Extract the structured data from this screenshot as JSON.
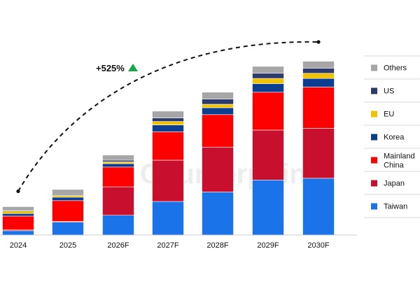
{
  "chart_data": {
    "type": "bar",
    "stacked": true,
    "title": "",
    "xlabel": "",
    "ylabel": "",
    "categories": [
      "2024",
      "2025",
      "2026F",
      "2027F",
      "2028F",
      "2029F",
      "2030F"
    ],
    "ylim": [
      0,
      100
    ],
    "grid": false,
    "legend_position": "right",
    "series": [
      {
        "name": "Taiwan",
        "color": "#1a73e8",
        "values": [
          2.5,
          7.5,
          11.5,
          19.5,
          25,
          32,
          33
        ]
      },
      {
        "name": "Japan",
        "color": "#c8102e",
        "values": [
          0.5,
          0.5,
          16.5,
          24,
          26,
          29,
          29
        ]
      },
      {
        "name": "Mainland China",
        "color": "#ff0000",
        "values": [
          8,
          12,
          11.5,
          16.5,
          19,
          22,
          24
        ]
      },
      {
        "name": "Korea",
        "color": "#0b3d91",
        "values": [
          1.5,
          2,
          2,
          4,
          4,
          5,
          5
        ]
      },
      {
        "name": "EU",
        "color": "#f2c200",
        "values": [
          1.5,
          1,
          1,
          2,
          2,
          3,
          3
        ]
      },
      {
        "name": "US",
        "color": "#2e3a6b",
        "values": [
          0.5,
          0.5,
          1,
          2,
          3,
          3,
          3
        ]
      },
      {
        "name": "Others",
        "color": "#a6a6a6",
        "values": [
          2,
          3,
          3,
          4,
          4,
          4,
          4
        ]
      }
    ],
    "annotations": [
      {
        "text": "+525%",
        "marker": "up-triangle",
        "marker_color": "#1aa64a",
        "style": "dashed-arc"
      }
    ]
  },
  "watermark": {
    "text": "Counterpoint"
  }
}
